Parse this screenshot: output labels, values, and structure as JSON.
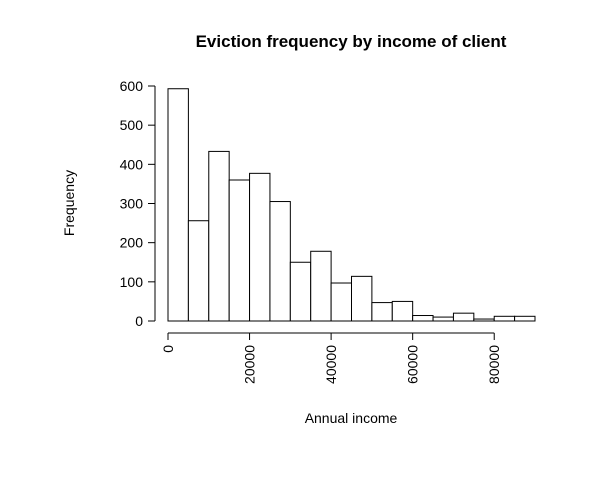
{
  "chart_data": {
    "type": "bar",
    "title": "Eviction frequency by income of client",
    "xlabel": "Annual income",
    "ylabel": "Frequency",
    "bin_width": 5000,
    "bin_starts": [
      0,
      5000,
      10000,
      15000,
      20000,
      25000,
      30000,
      35000,
      40000,
      45000,
      50000,
      55000,
      60000,
      65000,
      70000,
      75000,
      80000,
      85000
    ],
    "values": [
      593,
      256,
      433,
      360,
      377,
      305,
      150,
      178,
      97,
      114,
      47,
      50,
      14,
      10,
      20,
      5,
      12,
      12
    ],
    "xlim": [
      0,
      90000
    ],
    "ylim": [
      0,
      600
    ],
    "x_ticks": [
      "0",
      "20000",
      "40000",
      "60000",
      "80000"
    ],
    "y_ticks": [
      "0",
      "100",
      "200",
      "300",
      "400",
      "500",
      "600"
    ],
    "grid": false,
    "legend": "none",
    "colors": {
      "bar_fill": "#ffffff",
      "bar_stroke": "#000000"
    }
  }
}
